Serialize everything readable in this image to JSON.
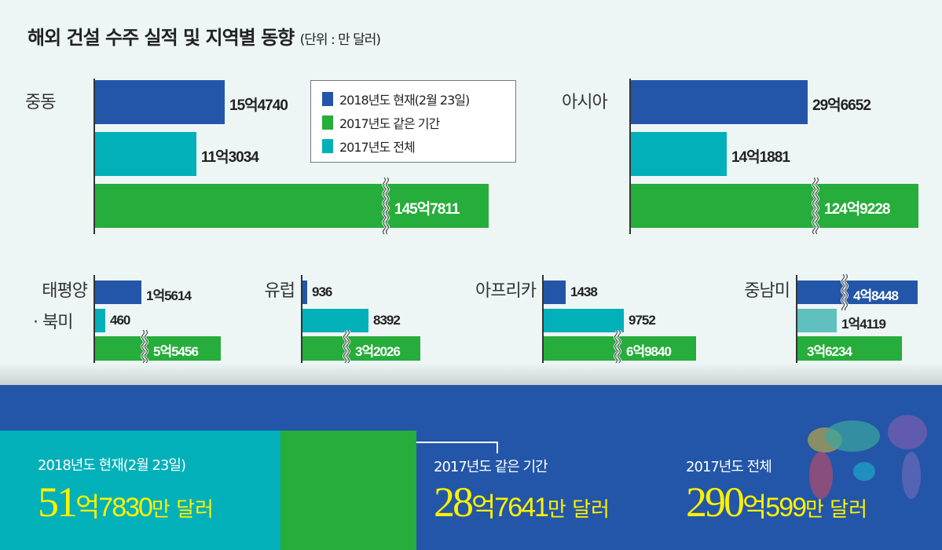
{
  "title": "해외 건설 수주 실적 및 지역별 동향",
  "unit": "(단위 : 만 달러)",
  "colors": {
    "blue": "#2356a8",
    "cyan": "#01b0b8",
    "green": "#26ad3b",
    "lightcyan": "#5fc0bd"
  },
  "legend": [
    {
      "label": "2018년도 현재(2월 23일)",
      "color": "#2356a8"
    },
    {
      "label": "2017년도 같은 기간",
      "color": "#26ad3b"
    },
    {
      "label": "2017년도 전체",
      "color": "#01b0b8"
    }
  ],
  "chart_data": {
    "type": "bar",
    "orientation": "horizontal",
    "unit": "만 달러",
    "regions": [
      {
        "name": "중동",
        "bars": [
          {
            "label": "15억4740",
            "value": 154740,
            "color": "#2356a8"
          },
          {
            "label": "11억3034",
            "value": 113034,
            "color": "#01b0b8"
          },
          {
            "label": "145억7811",
            "value": 1457811,
            "color": "#26ad3b",
            "broken": true
          }
        ]
      },
      {
        "name": "아시아",
        "bars": [
          {
            "label": "29억6652",
            "value": 296652,
            "color": "#2356a8"
          },
          {
            "label": "14억1881",
            "value": 141881,
            "color": "#01b0b8"
          },
          {
            "label": "124억9228",
            "value": 1249228,
            "color": "#26ad3b",
            "broken": true
          }
        ]
      },
      {
        "name": "태평양",
        "name2": "· 북미",
        "bars": [
          {
            "label": "1억5614",
            "value": 15614,
            "color": "#2356a8"
          },
          {
            "label": "460",
            "value": 460,
            "color": "#01b0b8"
          },
          {
            "label": "5억5456",
            "value": 55456,
            "color": "#26ad3b",
            "broken": true
          }
        ]
      },
      {
        "name": "유럽",
        "bars": [
          {
            "label": "936",
            "value": 936,
            "color": "#2356a8"
          },
          {
            "label": "8392",
            "value": 8392,
            "color": "#01b0b8"
          },
          {
            "label": "3억2026",
            "value": 32026,
            "color": "#26ad3b",
            "broken": true
          }
        ]
      },
      {
        "name": "아프리카",
        "bars": [
          {
            "label": "1438",
            "value": 1438,
            "color": "#2356a8"
          },
          {
            "label": "9752",
            "value": 9752,
            "color": "#01b0b8"
          },
          {
            "label": "6억9840",
            "value": 69840,
            "color": "#26ad3b",
            "broken": true
          }
        ]
      },
      {
        "name": "중남미",
        "bars": [
          {
            "label": "4억8448",
            "value": 48448,
            "color": "#2356a8",
            "broken": true
          },
          {
            "label": "1억4119",
            "value": 14119,
            "color": "#5fc0bd"
          },
          {
            "label": "3억6234",
            "value": 36234,
            "color": "#26ad3b"
          }
        ]
      }
    ]
  },
  "totals": [
    {
      "caption": "2018년도 현재(2월 23일)",
      "eok": "51",
      "eok_unit": "억",
      "man": "7830",
      "suffix": "만 달러"
    },
    {
      "caption": "2017년도 같은 기간",
      "eok": "28",
      "eok_unit": "억",
      "man": "7641",
      "suffix": "만 달러"
    },
    {
      "caption": "2017년도 전체",
      "eok": "290",
      "eok_unit": "억",
      "man": "599",
      "suffix": "만 달러"
    }
  ]
}
